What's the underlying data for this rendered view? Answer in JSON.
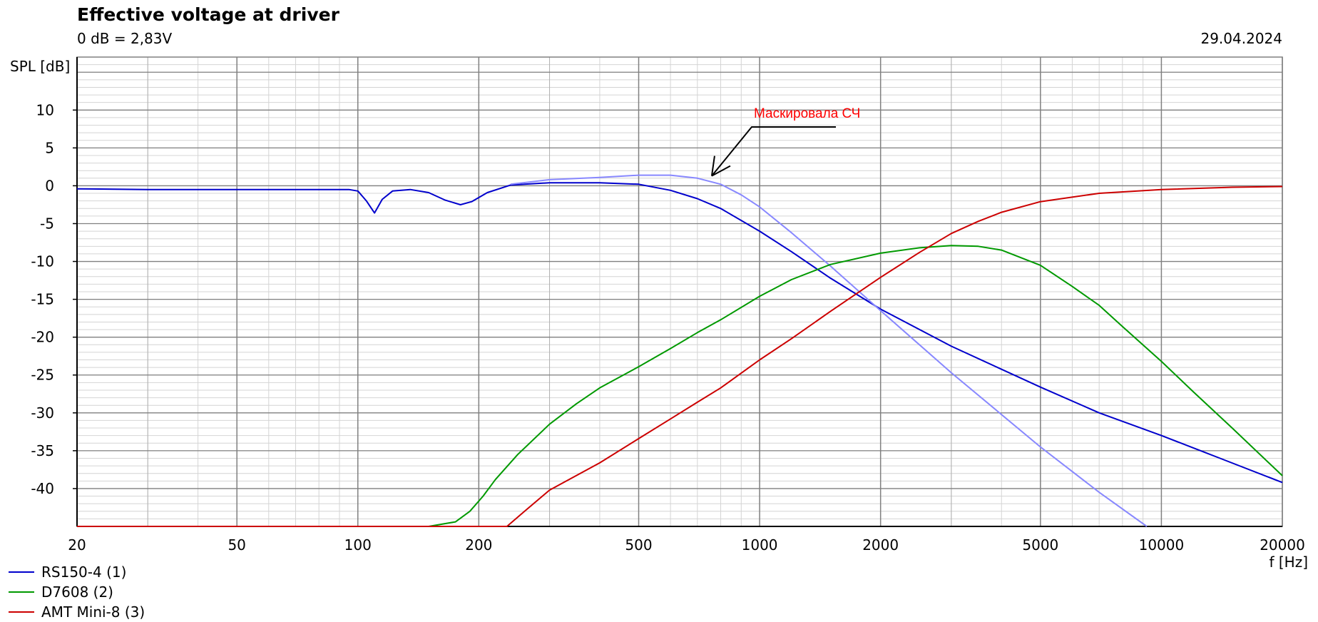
{
  "chart_data": {
    "type": "line",
    "title": "Effective voltage at driver",
    "subtitle": "0 dB = 2,83V",
    "date": "29.04.2024",
    "ylabel": "SPL [dB]",
    "xlabel": "f [Hz]",
    "xscale": "log",
    "xlim": [
      20,
      20000
    ],
    "ylim": [
      -45,
      17
    ],
    "grid": true,
    "legend_position": "bottom-left",
    "x_ticks": [
      20,
      50,
      100,
      200,
      500,
      1000,
      2000,
      5000,
      10000,
      20000
    ],
    "x_tick_labels": [
      "20",
      "50",
      "100",
      "200",
      "500",
      "1000",
      "2000",
      "5000",
      "10000",
      "20000"
    ],
    "y_ticks": [
      10,
      5,
      0,
      -5,
      -10,
      -15,
      -20,
      -25,
      -30,
      -35,
      -40
    ],
    "y_tick_labels": [
      "10",
      "5",
      "0",
      "-5",
      "-10",
      "-15",
      "-20",
      "-25",
      "-30",
      "-35",
      "-40"
    ],
    "series": [
      {
        "name": "RS150-4 (1)",
        "color": "#0000cc",
        "points": [
          [
            20,
            -0.4
          ],
          [
            30,
            -0.5
          ],
          [
            50,
            -0.5
          ],
          [
            80,
            -0.5
          ],
          [
            95,
            -0.5
          ],
          [
            100,
            -0.7
          ],
          [
            105,
            -2
          ],
          [
            110,
            -3.6
          ],
          [
            115,
            -1.8
          ],
          [
            122,
            -0.7
          ],
          [
            135,
            -0.5
          ],
          [
            150,
            -0.9
          ],
          [
            165,
            -1.9
          ],
          [
            180,
            -2.5
          ],
          [
            192,
            -2.1
          ],
          [
            210,
            -0.9
          ],
          [
            240,
            0.1
          ],
          [
            300,
            0.4
          ],
          [
            400,
            0.4
          ],
          [
            500,
            0.2
          ],
          [
            600,
            -0.6
          ],
          [
            700,
            -1.7
          ],
          [
            800,
            -3
          ],
          [
            1000,
            -6
          ],
          [
            1200,
            -8.7
          ],
          [
            1500,
            -12.2
          ],
          [
            2000,
            -16.3
          ],
          [
            3000,
            -21.2
          ],
          [
            5000,
            -26.6
          ],
          [
            7000,
            -30
          ],
          [
            10000,
            -33
          ],
          [
            14000,
            -36
          ],
          [
            20000,
            -39.2
          ]
        ]
      },
      {
        "name": "",
        "color": "#8888ff",
        "points": [
          [
            240,
            0.2
          ],
          [
            300,
            0.8
          ],
          [
            400,
            1.1
          ],
          [
            500,
            1.4
          ],
          [
            600,
            1.4
          ],
          [
            700,
            1
          ],
          [
            800,
            0.2
          ],
          [
            900,
            -1.2
          ],
          [
            1000,
            -2.8
          ],
          [
            1200,
            -6.2
          ],
          [
            1500,
            -10.6
          ],
          [
            2000,
            -16.5
          ],
          [
            3000,
            -24.7
          ],
          [
            5000,
            -34.5
          ],
          [
            7000,
            -40.5
          ],
          [
            9200,
            -45
          ]
        ]
      },
      {
        "name": "D7608 (2)",
        "color": "#009900",
        "points": [
          [
            20,
            -45
          ],
          [
            100,
            -45
          ],
          [
            150,
            -45
          ],
          [
            175,
            -44.4
          ],
          [
            190,
            -43
          ],
          [
            205,
            -41
          ],
          [
            220,
            -38.8
          ],
          [
            250,
            -35.5
          ],
          [
            300,
            -31.5
          ],
          [
            350,
            -28.8
          ],
          [
            400,
            -26.7
          ],
          [
            500,
            -23.9
          ],
          [
            600,
            -21.5
          ],
          [
            700,
            -19.4
          ],
          [
            800,
            -17.7
          ],
          [
            1000,
            -14.6
          ],
          [
            1200,
            -12.4
          ],
          [
            1500,
            -10.4
          ],
          [
            2000,
            -8.9
          ],
          [
            2500,
            -8.2
          ],
          [
            3000,
            -7.9
          ],
          [
            3500,
            -8
          ],
          [
            4000,
            -8.5
          ],
          [
            5000,
            -10.5
          ],
          [
            6000,
            -13.3
          ],
          [
            7000,
            -15.8
          ],
          [
            8000,
            -18.6
          ],
          [
            10000,
            -23.2
          ],
          [
            12000,
            -27.2
          ],
          [
            15000,
            -32
          ],
          [
            20000,
            -38.3
          ]
        ]
      },
      {
        "name": "AMT Mini-8 (3)",
        "color": "#cc0000",
        "points": [
          [
            20,
            -45
          ],
          [
            100,
            -45
          ],
          [
            235,
            -45
          ],
          [
            260,
            -43
          ],
          [
            300,
            -40.2
          ],
          [
            400,
            -36.6
          ],
          [
            500,
            -33.4
          ],
          [
            600,
            -30.8
          ],
          [
            700,
            -28.6
          ],
          [
            800,
            -26.7
          ],
          [
            1000,
            -23
          ],
          [
            1200,
            -20.2
          ],
          [
            1500,
            -16.6
          ],
          [
            2000,
            -12.1
          ],
          [
            2500,
            -8.8
          ],
          [
            3000,
            -6.3
          ],
          [
            3500,
            -4.7
          ],
          [
            4000,
            -3.5
          ],
          [
            5000,
            -2.1
          ],
          [
            7000,
            -1
          ],
          [
            10000,
            -0.5
          ],
          [
            15000,
            -0.2
          ],
          [
            20000,
            -0.1
          ]
        ]
      }
    ],
    "annotation": {
      "text": "Маскировала СЧ",
      "color": "#ff0000",
      "arrow_target": [
        760,
        1.3
      ]
    }
  }
}
